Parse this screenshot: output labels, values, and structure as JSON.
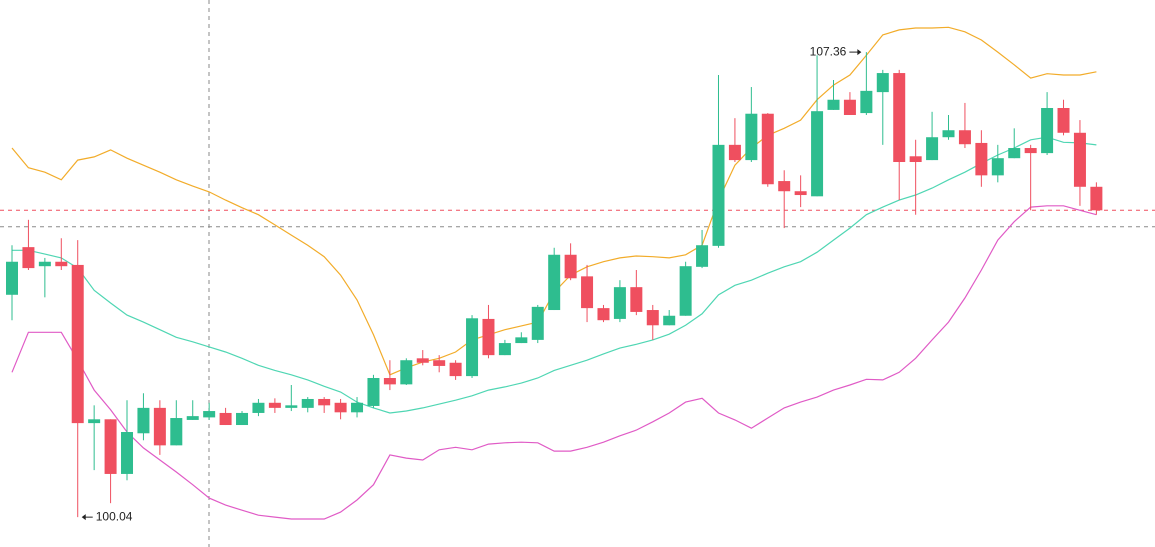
{
  "chart_data": {
    "type": "candlestick",
    "open": [
      103.54,
      104.29,
      103.99,
      104.06,
      104.01,
      101.52,
      101.58,
      100.72,
      101.36,
      101.76,
      101.17,
      101.57,
      101.61,
      101.68,
      101.49,
      101.68,
      101.84,
      101.76,
      101.76,
      101.9,
      101.84,
      101.69,
      101.79,
      102.23,
      102.13,
      102.54,
      102.51,
      102.47,
      102.26,
      103.16,
      102.59,
      102.78,
      102.83,
      103.3,
      104.17,
      103.83,
      103.33,
      103.16,
      103.66,
      103.3,
      103.06,
      103.21,
      103.98,
      104.31,
      105.9,
      105.66,
      106.39,
      105.33,
      105.17,
      105.09,
      106.45,
      106.61,
      106.4,
      106.73,
      107.03,
      105.72,
      105.66,
      106.02,
      106.13,
      105.93,
      105.42,
      105.69,
      105.85,
      105.77,
      106.48,
      106.09,
      105.24
    ],
    "high": [
      104.32,
      104.72,
      104.12,
      104.43,
      104.4,
      101.8,
      101.58,
      101.88,
      101.99,
      101.88,
      101.88,
      101.88,
      101.84,
      101.76,
      101.71,
      101.9,
      101.91,
      102.12,
      101.93,
      101.93,
      101.9,
      101.93,
      102.28,
      102.51,
      102.54,
      102.67,
      102.59,
      102.51,
      103.22,
      103.38,
      102.83,
      102.95,
      103.38,
      104.28,
      104.35,
      104.01,
      103.38,
      103.77,
      103.93,
      103.38,
      103.3,
      104.06,
      104.56,
      107.0,
      106.32,
      106.81,
      106.4,
      105.5,
      105.42,
      107.31,
      106.92,
      106.73,
      107.36,
      107.08,
      107.08,
      105.98,
      106.42,
      106.37,
      106.56,
      106.13,
      105.9,
      106.16,
      105.9,
      106.73,
      106.61,
      106.29,
      105.31
    ],
    "low": [
      103.14,
      103.93,
      103.5,
      103.93,
      100.04,
      100.78,
      100.26,
      100.62,
      101.25,
      101.02,
      101.17,
      101.57,
      101.57,
      101.49,
      101.49,
      101.63,
      101.68,
      101.71,
      101.69,
      101.68,
      101.58,
      101.61,
      101.76,
      102.04,
      102.12,
      102.43,
      102.32,
      102.2,
      102.23,
      102.54,
      102.59,
      102.78,
      102.78,
      103.3,
      103.77,
      103.11,
      103.11,
      103.11,
      103.22,
      102.83,
      103.06,
      103.21,
      103.96,
      104.28,
      105.63,
      105.63,
      105.24,
      104.59,
      104.92,
      105.09,
      106.45,
      106.37,
      106.37,
      105.9,
      105.03,
      104.8,
      105.66,
      105.98,
      105.85,
      105.24,
      105.31,
      105.69,
      104.87,
      105.74,
      106.05,
      104.94,
      104.8
    ],
    "close": [
      104.06,
      103.96,
      104.06,
      103.99,
      101.52,
      101.58,
      100.72,
      101.38,
      101.76,
      101.17,
      101.6,
      101.63,
      101.71,
      101.49,
      101.68,
      101.84,
      101.76,
      101.8,
      101.9,
      101.8,
      101.69,
      101.84,
      102.23,
      102.13,
      102.51,
      102.47,
      102.42,
      102.26,
      103.17,
      102.59,
      102.78,
      102.87,
      103.35,
      104.17,
      103.8,
      103.33,
      103.14,
      103.66,
      103.27,
      103.06,
      103.21,
      103.99,
      104.32,
      105.9,
      105.66,
      106.39,
      105.28,
      105.17,
      105.11,
      106.43,
      106.61,
      106.37,
      106.75,
      107.03,
      105.63,
      105.63,
      106.02,
      106.13,
      105.91,
      105.42,
      105.69,
      105.85,
      105.77,
      106.48,
      106.09,
      105.24,
      104.87
    ],
    "up_color": "#2ebd8f",
    "down_color": "#ef4f5f",
    "overlays": [
      {
        "color": "#f2ac2a",
        "values": [
          105.85,
          105.54,
          105.47,
          105.35,
          105.66,
          105.71,
          105.82,
          105.69,
          105.58,
          105.47,
          105.35,
          105.25,
          105.16,
          105.03,
          104.91,
          104.8,
          104.64,
          104.48,
          104.32,
          104.14,
          103.85,
          103.46,
          102.91,
          102.28,
          102.39,
          102.48,
          102.54,
          102.64,
          102.83,
          102.91,
          102.99,
          103.05,
          103.11,
          103.58,
          103.85,
          103.98,
          104.06,
          104.12,
          104.15,
          104.14,
          104.12,
          104.17,
          104.32,
          105.03,
          105.58,
          105.85,
          106.05,
          106.16,
          106.29,
          106.61,
          106.84,
          107.0,
          107.31,
          107.63,
          107.71,
          107.74,
          107.74,
          107.75,
          107.68,
          107.55,
          107.36,
          107.16,
          106.95,
          107.02,
          107.0,
          107.0,
          107.05
        ]
      },
      {
        "color": "#4fd6b3",
        "values": [
          104.24,
          104.24,
          104.18,
          104.12,
          103.96,
          103.61,
          103.41,
          103.22,
          103.11,
          102.99,
          102.87,
          102.8,
          102.72,
          102.64,
          102.54,
          102.43,
          102.35,
          102.28,
          102.2,
          102.1,
          102.01,
          101.85,
          101.76,
          101.68,
          101.71,
          101.76,
          101.82,
          101.88,
          101.95,
          102.04,
          102.09,
          102.15,
          102.23,
          102.35,
          102.43,
          102.51,
          102.61,
          102.7,
          102.76,
          102.83,
          102.92,
          103.06,
          103.24,
          103.54,
          103.69,
          103.77,
          103.88,
          103.98,
          104.06,
          104.21,
          104.4,
          104.59,
          104.8,
          104.92,
          105.03,
          105.11,
          105.22,
          105.35,
          105.47,
          105.61,
          105.74,
          105.85,
          105.98,
          106.02,
          105.94,
          105.93,
          105.9
        ]
      },
      {
        "color": "#e05bc6",
        "values": [
          102.32,
          102.95,
          102.95,
          102.95,
          102.51,
          102.04,
          101.73,
          101.38,
          101.13,
          100.94,
          100.75,
          100.55,
          100.34,
          100.23,
          100.15,
          100.07,
          100.04,
          100.01,
          100.01,
          100.01,
          100.12,
          100.31,
          100.55,
          101.02,
          100.97,
          100.94,
          101.1,
          101.14,
          101.1,
          101.19,
          101.21,
          101.22,
          101.21,
          101.08,
          101.08,
          101.14,
          101.22,
          101.32,
          101.41,
          101.54,
          101.68,
          101.85,
          101.91,
          101.68,
          101.57,
          101.44,
          101.6,
          101.76,
          101.85,
          101.93,
          102.04,
          102.12,
          102.21,
          102.2,
          102.32,
          102.54,
          102.83,
          103.11,
          103.49,
          103.93,
          104.4,
          104.69,
          104.92,
          104.94,
          104.94,
          104.87,
          104.8
        ]
      }
    ],
    "price_lines": [
      {
        "value": 104.87,
        "color": "#ef4f5f"
      },
      {
        "value": 104.61,
        "color": "#8a8a8a"
      }
    ],
    "max_label": 107.36,
    "min_label": 100.04,
    "ylim": [
      99.57,
      108.18
    ]
  }
}
